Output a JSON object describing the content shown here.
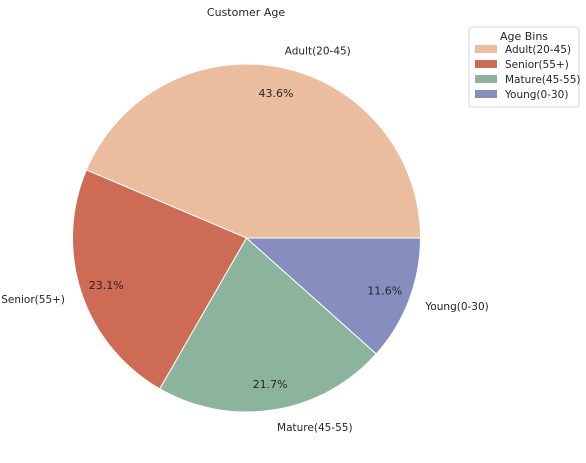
{
  "chart_data": {
    "type": "pie",
    "title": "Customer Age",
    "categories": [
      "Adult(20-45)",
      "Senior(55+)",
      "Mature(45-55)",
      "Young(0-30)"
    ],
    "values": [
      43.6,
      23.1,
      21.7,
      11.6
    ],
    "percent_labels": [
      "43.6%",
      "23.1%",
      "21.7%",
      "11.6%"
    ],
    "colors": [
      "#ebbc9e",
      "#cd6b55",
      "#8cb39b",
      "#868ebf"
    ],
    "start_angle_deg": 0,
    "direction": "counterclockwise",
    "legend": {
      "title": "Age Bins",
      "placement": "top-right",
      "items": [
        "Adult(20-45)",
        "Senior(55+)",
        "Mature(45-55)",
        "Young(0-30)"
      ]
    }
  }
}
